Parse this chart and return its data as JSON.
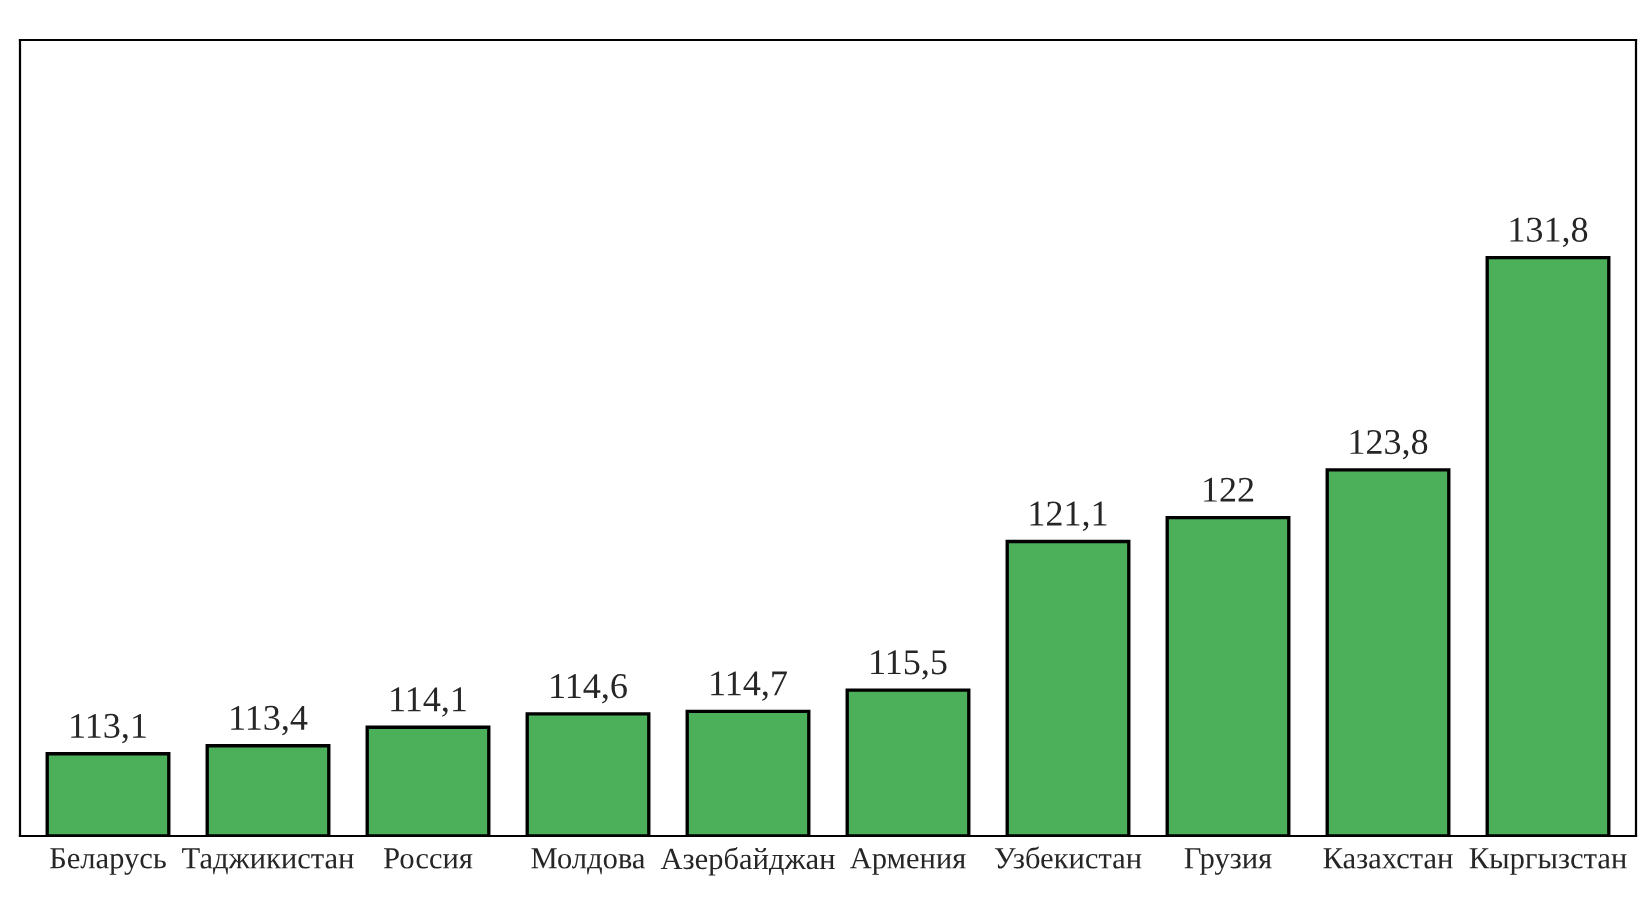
{
  "chart_data": {
    "type": "bar",
    "categories": [
      "Беларусь",
      "Таджикистан",
      "Россия",
      "Молдова",
      "Азербайджан",
      "Армения",
      "Узбекистан",
      "Грузия",
      "Казахстан",
      "Кыргызстан"
    ],
    "values": [
      113.1,
      113.4,
      114.1,
      114.6,
      114.7,
      115.5,
      121.1,
      122,
      123.8,
      131.8
    ],
    "value_labels": [
      "113,1",
      "113,4",
      "114,1",
      "114,6",
      "114,7",
      "115,5",
      "121,1",
      "122",
      "123,8",
      "131,8"
    ],
    "color": "#4caf5a",
    "ylim": [
      110,
      140
    ],
    "tick_labels": "x",
    "grid": false,
    "legend": false
  }
}
